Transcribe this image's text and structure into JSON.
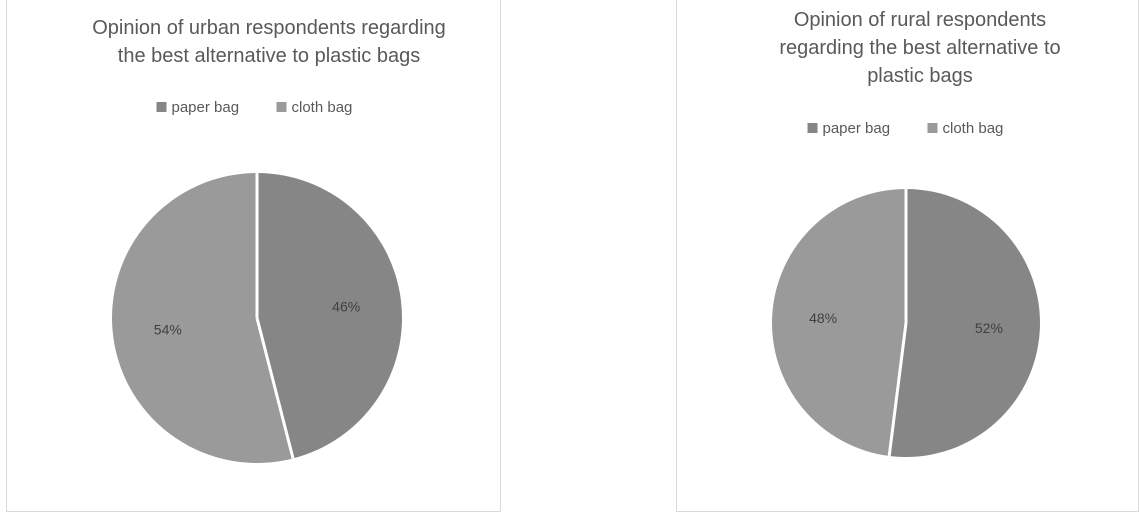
{
  "chart_data": [
    {
      "type": "pie",
      "title_lines": [
        "Opinion of urban respondents regarding",
        "the best alternative to plastic bags"
      ],
      "categories": [
        "paper bag",
        "cloth bag"
      ],
      "values": [
        46,
        54
      ],
      "labels": [
        "46%",
        "54%"
      ],
      "colors": [
        "#868686",
        "#9a9a9a"
      ],
      "legend": "top"
    },
    {
      "type": "pie",
      "title_lines": [
        "Opinion of rural respondents",
        "regarding the best alternative to",
        "plastic bags"
      ],
      "categories": [
        "paper bag",
        "cloth bag"
      ],
      "values": [
        52,
        48
      ],
      "labels": [
        "52%",
        "48%"
      ],
      "colors": [
        "#868686",
        "#9a9a9a"
      ],
      "legend": "top"
    }
  ]
}
